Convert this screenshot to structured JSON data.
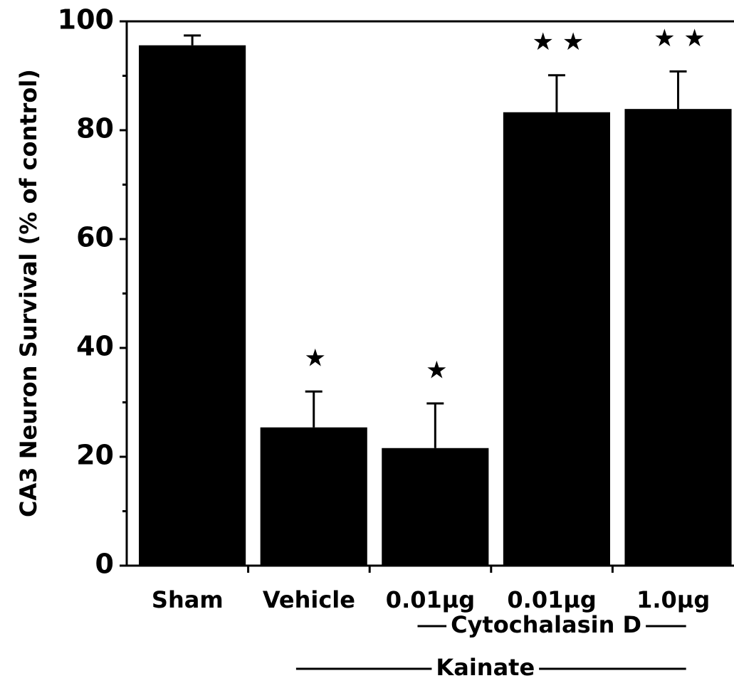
{
  "chart_data": {
    "type": "bar",
    "y_label": "CA3 Neuron Survival (% of control)",
    "categories": [
      "Sham",
      "Vehicle",
      "0.01µg",
      "0.01µg",
      "1.0µg"
    ],
    "values": [
      95.6,
      25.4,
      21.6,
      83.3,
      83.9
    ],
    "errors": [
      1.8,
      6.6,
      8.2,
      6.8,
      6.9
    ],
    "value_annotations": [
      null,
      "★",
      "★",
      "★ ★",
      "★ ★"
    ],
    "groups": [
      {
        "label": "Cytochalasin D",
        "span": [
          2,
          4
        ]
      },
      {
        "label": "Kainate",
        "span": [
          1,
          4
        ]
      }
    ],
    "color": "#000000",
    "ylim": [
      0,
      100
    ],
    "yticks": [
      0,
      20,
      40,
      60,
      80,
      100
    ],
    "minor_yticks": [
      10,
      30,
      50,
      70,
      90
    ]
  }
}
